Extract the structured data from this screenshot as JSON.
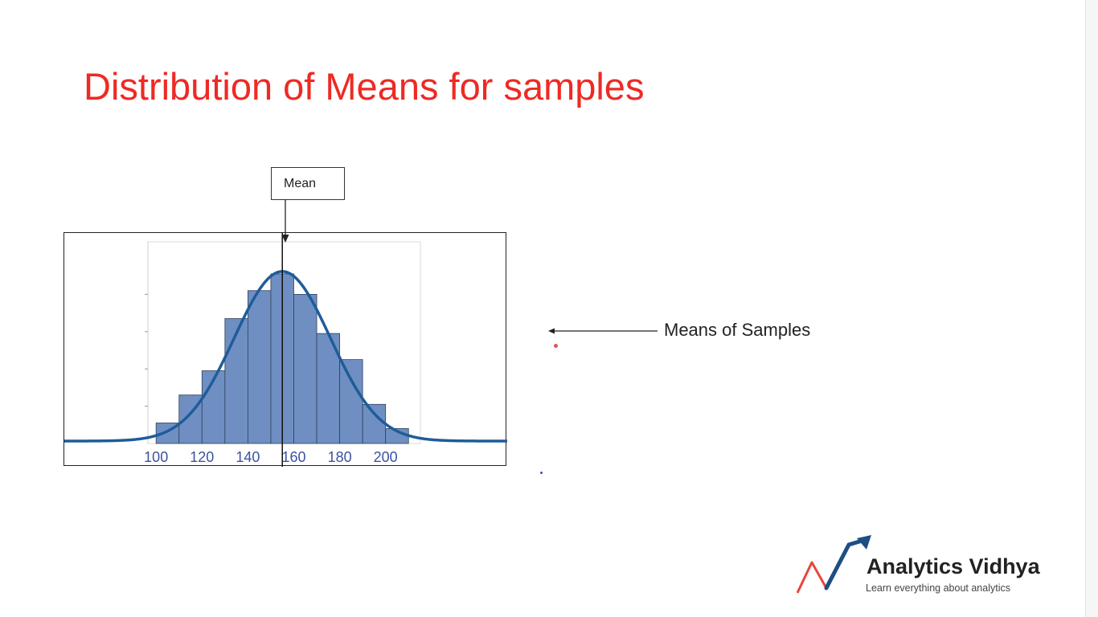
{
  "slide": {
    "title": "Distribution of Means for samples",
    "mean_callout": "Mean",
    "side_label": "Means of Samples"
  },
  "logo": {
    "name": "Analytics Vidhya",
    "tagline": "Learn everything about analytics"
  },
  "colors": {
    "title": "#ee2a24",
    "bar_fill": "#6f8fc2",
    "bar_stroke": "#2e3f5a",
    "curve": "#1f5c99",
    "tick_label": "#3a52a3",
    "logo_arrow": "#1d4e84",
    "logo_red": "#e8463c"
  },
  "chart_data": {
    "type": "bar",
    "bins": [
      {
        "start": 100,
        "end": 110,
        "value": 1.1
      },
      {
        "start": 110,
        "end": 120,
        "value": 2.6
      },
      {
        "start": 120,
        "end": 130,
        "value": 3.9
      },
      {
        "start": 130,
        "end": 140,
        "value": 6.7
      },
      {
        "start": 140,
        "end": 150,
        "value": 8.2
      },
      {
        "start": 150,
        "end": 160,
        "value": 9.1
      },
      {
        "start": 160,
        "end": 170,
        "value": 8.0
      },
      {
        "start": 170,
        "end": 180,
        "value": 5.9
      },
      {
        "start": 180,
        "end": 190,
        "value": 4.5
      },
      {
        "start": 190,
        "end": 200,
        "value": 2.1
      },
      {
        "start": 200,
        "end": 210,
        "value": 0.8
      }
    ],
    "x_ticks": [
      100,
      120,
      140,
      160,
      180,
      200
    ],
    "xlim": [
      60,
      253
    ],
    "ylim": [
      0,
      10
    ],
    "curve": {
      "type": "normal",
      "mean": 155,
      "sd": 21,
      "peak": 9.1
    },
    "mean_line_x": 155,
    "grid": false,
    "title": "",
    "xlabel": "",
    "ylabel": ""
  }
}
